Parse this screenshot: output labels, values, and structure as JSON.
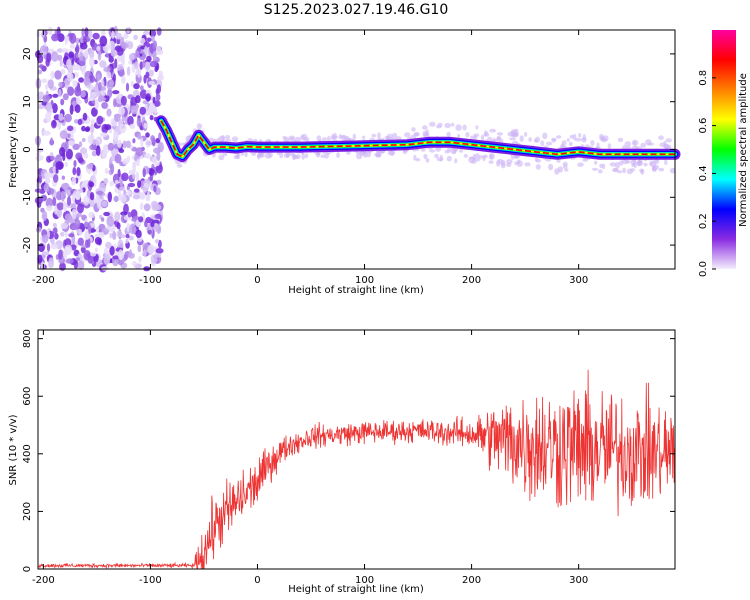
{
  "title": "S125.2023.027.19.46.G10",
  "chart_data": [
    {
      "type": "heatmap",
      "xlabel": "Height of straight line (km)",
      "ylabel": "Frequency (Hz)",
      "xlim": [
        -205,
        390
      ],
      "ylim": [
        -25,
        25
      ],
      "xticks": [
        -200,
        -100,
        0,
        100,
        200,
        300
      ],
      "yticks": [
        -20,
        -10,
        0,
        10,
        20
      ],
      "colorbar": {
        "label": "Normalized spectral amplitude",
        "range": [
          0,
          1
        ],
        "ticks": [
          0.0,
          0.2,
          0.4,
          0.6,
          0.8
        ],
        "colormap": [
          "#f4eefc",
          "#8a2be2",
          "#0000ff",
          "#00ffff",
          "#00ff00",
          "#ffff00",
          "#ff8000",
          "#ff0000",
          "#ff00a0"
        ]
      },
      "noise_region_x": [
        -205,
        -90
      ],
      "ridge": {
        "x": [
          -90,
          -85,
          -80,
          -75,
          -70,
          -65,
          -60,
          -55,
          -50,
          -45,
          -40,
          -30,
          -20,
          -10,
          0,
          20,
          40,
          60,
          80,
          100,
          120,
          140,
          160,
          180,
          200,
          220,
          240,
          260,
          280,
          300,
          320,
          340,
          360,
          390
        ],
        "y": [
          6,
          4,
          1.5,
          -1,
          -1.5,
          0,
          1,
          3,
          1.5,
          0,
          0.5,
          0.5,
          0.3,
          0.6,
          0.5,
          0.5,
          0.5,
          0.6,
          0.7,
          0.8,
          0.9,
          1.0,
          1.5,
          1.5,
          1.0,
          0.5,
          0,
          -0.5,
          -1,
          -0.5,
          -1,
          -1,
          -1,
          -1
        ]
      }
    },
    {
      "type": "line",
      "xlabel": "Height of straight line (km)",
      "ylabel": "SNR (10 * v/v)",
      "xlim": [
        -205,
        390
      ],
      "ylim": [
        0,
        830
      ],
      "xticks": [
        -200,
        -100,
        0,
        100,
        200,
        300
      ],
      "yticks": [
        0,
        200,
        400,
        600,
        800
      ],
      "color": "#ee3333",
      "trend": {
        "x": [
          -205,
          -60,
          -50,
          -40,
          -20,
          0,
          10,
          20,
          30,
          50,
          100,
          150,
          200,
          230,
          260,
          300,
          390
        ],
        "y": [
          12,
          12,
          60,
          150,
          230,
          300,
          360,
          400,
          430,
          460,
          475,
          480,
          470,
          450,
          430,
          420,
          400
        ]
      },
      "spread": {
        "x": [
          -205,
          -60,
          -50,
          -20,
          0,
          30,
          150,
          200,
          220,
          250,
          300,
          390
        ],
        "y": [
          5,
          5,
          80,
          80,
          60,
          30,
          30,
          40,
          90,
          150,
          170,
          130
        ]
      }
    }
  ]
}
